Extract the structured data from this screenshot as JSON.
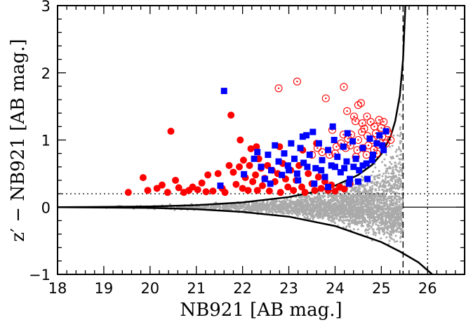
{
  "chart_data": {
    "type": "scatter",
    "xlabel": "NB921 [AB mag.]",
    "ylabel": "z′ − NB921 [AB mag.]",
    "xlim": [
      18,
      26.8
    ],
    "ylim": [
      -1,
      3
    ],
    "x_ticks": [
      18,
      19,
      20,
      21,
      22,
      23,
      24,
      25,
      26
    ],
    "y_ticks": [
      -1,
      0,
      1,
      2,
      3
    ],
    "grid": false,
    "colors": {
      "filled_circle": "#ff0000",
      "open_circle": "#ff0000",
      "square": "#0000ff",
      "background_points": "#aaaaaa",
      "curves": "#000000"
    },
    "reference_lines": {
      "color_cut_y": 0.2,
      "zero_y": 0,
      "limit_x_dashed": 25.47,
      "limit_x_dotted": 26.0
    },
    "curves": {
      "upper": [
        [
          18,
          0
        ],
        [
          20,
          0.01
        ],
        [
          21,
          0.03
        ],
        [
          22,
          0.07
        ],
        [
          23,
          0.15
        ],
        [
          23.5,
          0.22
        ],
        [
          24,
          0.32
        ],
        [
          24.5,
          0.48
        ],
        [
          24.8,
          0.63
        ],
        [
          25,
          0.79
        ],
        [
          25.2,
          1.05
        ],
        [
          25.3,
          1.28
        ],
        [
          25.4,
          1.66
        ],
        [
          25.47,
          2.2
        ],
        [
          25.52,
          3.0
        ]
      ],
      "lower": [
        [
          18,
          0
        ],
        [
          20,
          -0.01
        ],
        [
          21,
          -0.03
        ],
        [
          22,
          -0.07
        ],
        [
          23,
          -0.14
        ],
        [
          24,
          -0.28
        ],
        [
          24.5,
          -0.4
        ],
        [
          25,
          -0.52
        ],
        [
          25.4,
          -0.66
        ],
        [
          25.8,
          -0.82
        ],
        [
          26.1,
          -1.0
        ]
      ]
    },
    "series": [
      {
        "marker": "filled-circle",
        "color": "#ff0000",
        "points": [
          [
            19.53,
            0.22
          ],
          [
            19.85,
            0.44
          ],
          [
            19.95,
            0.25
          ],
          [
            20.15,
            0.28
          ],
          [
            20.26,
            0.33
          ],
          [
            20.38,
            0.22
          ],
          [
            20.45,
            1.13
          ],
          [
            20.55,
            0.4
          ],
          [
            20.62,
            0.29
          ],
          [
            20.73,
            0.22
          ],
          [
            20.84,
            0.25
          ],
          [
            20.92,
            0.3
          ],
          [
            21.03,
            0.26
          ],
          [
            21.12,
            0.36
          ],
          [
            21.21,
            0.23
          ],
          [
            21.25,
            0.48
          ],
          [
            21.36,
            0.24
          ],
          [
            21.47,
            0.5
          ],
          [
            21.56,
            0.28
          ],
          [
            21.62,
            0.22
          ],
          [
            21.71,
            0.62
          ],
          [
            21.75,
            1.37
          ],
          [
            21.8,
            0.52
          ],
          [
            21.86,
            0.34
          ],
          [
            21.93,
            0.6
          ],
          [
            21.95,
            1.0
          ],
          [
            22.0,
            0.28
          ],
          [
            22.02,
            0.7
          ],
          [
            22.06,
            0.44
          ],
          [
            22.12,
            0.25
          ],
          [
            22.15,
            0.62
          ],
          [
            22.18,
            0.87
          ],
          [
            22.22,
            0.38
          ],
          [
            22.28,
            0.48
          ],
          [
            22.32,
            0.25
          ],
          [
            22.35,
            0.72
          ],
          [
            22.4,
            0.58
          ],
          [
            22.43,
            0.32
          ],
          [
            22.48,
            0.43
          ],
          [
            22.54,
            0.62
          ],
          [
            22.58,
            0.24
          ],
          [
            22.64,
            0.55
          ],
          [
            22.7,
            0.38
          ],
          [
            22.76,
            0.5
          ],
          [
            22.82,
            0.22
          ],
          [
            22.87,
            0.65
          ],
          [
            22.93,
            0.42
          ],
          [
            22.98,
            0.3
          ],
          [
            23.04,
            0.55
          ],
          [
            23.1,
            0.25
          ],
          [
            23.16,
            0.4
          ],
          [
            23.22,
            0.62
          ],
          [
            23.28,
            0.3
          ],
          [
            23.35,
            0.22
          ],
          [
            23.42,
            0.5
          ],
          [
            23.5,
            0.35
          ],
          [
            23.56,
            0.25
          ],
          [
            23.64,
            0.45
          ],
          [
            23.7,
            0.28
          ],
          [
            23.78,
            0.38
          ],
          [
            23.85,
            0.25
          ],
          [
            23.92,
            0.33
          ],
          [
            24.0,
            0.24
          ],
          [
            24.1,
            0.3
          ],
          [
            24.2,
            0.27
          ],
          [
            24.32,
            0.35
          ],
          [
            22.3,
            0.9
          ],
          [
            22.8,
            0.9
          ],
          [
            23.3,
            0.85
          ],
          [
            23.6,
            0.95
          ]
        ]
      },
      {
        "marker": "open-circle",
        "color": "#ff0000",
        "points": [
          [
            22.78,
            1.77
          ],
          [
            23.18,
            1.87
          ],
          [
            24.19,
            1.79
          ],
          [
            23.8,
            1.62
          ],
          [
            24.26,
            1.43
          ],
          [
            24.5,
            1.52
          ],
          [
            24.56,
            1.55
          ],
          [
            24.41,
            1.35
          ],
          [
            24.69,
            1.35
          ],
          [
            23.94,
            1.15
          ],
          [
            24.44,
            1.28
          ],
          [
            24.59,
            1.25
          ],
          [
            24.63,
            1.17
          ],
          [
            24.77,
            1.27
          ],
          [
            24.85,
            1.2
          ],
          [
            24.95,
            1.3
          ],
          [
            25.0,
            1.18
          ],
          [
            25.05,
            1.27
          ],
          [
            25.12,
            1.15
          ],
          [
            24.18,
            1.08
          ],
          [
            24.28,
            1.02
          ],
          [
            24.35,
            1.08
          ],
          [
            24.5,
            1.0
          ],
          [
            24.58,
            1.12
          ],
          [
            24.7,
            1.06
          ],
          [
            24.8,
            1.0
          ],
          [
            24.88,
            1.1
          ],
          [
            24.96,
            0.98
          ],
          [
            25.02,
            1.05
          ],
          [
            24.03,
            0.9
          ],
          [
            24.13,
            0.95
          ],
          [
            24.23,
            0.88
          ],
          [
            24.33,
            0.92
          ],
          [
            24.48,
            0.85
          ],
          [
            24.6,
            0.88
          ],
          [
            24.72,
            0.92
          ],
          [
            24.84,
            0.86
          ],
          [
            24.92,
            0.93
          ],
          [
            23.72,
            0.82
          ],
          [
            23.88,
            0.78
          ],
          [
            24.0,
            0.8
          ],
          [
            24.45,
            0.75
          ],
          [
            24.68,
            0.78
          ],
          [
            24.9,
            0.8
          ],
          [
            23.5,
            0.78
          ],
          [
            23.62,
            0.88
          ],
          [
            25.1,
            0.95
          ],
          [
            25.15,
            1.1
          ],
          [
            25.2,
            1.0
          ]
        ]
      },
      {
        "marker": "filled-square",
        "color": "#0000ff",
        "points": [
          [
            21.6,
            1.73
          ],
          [
            21.52,
            0.32
          ],
          [
            22.03,
            0.49
          ],
          [
            22.25,
            0.72
          ],
          [
            22.32,
            0.82
          ],
          [
            22.4,
            0.6
          ],
          [
            22.48,
            0.42
          ],
          [
            22.55,
            0.78
          ],
          [
            22.62,
            0.55
          ],
          [
            22.7,
            0.92
          ],
          [
            22.78,
            0.68
          ],
          [
            22.85,
            0.48
          ],
          [
            22.9,
            0.8
          ],
          [
            22.98,
            0.62
          ],
          [
            23.05,
            0.95
          ],
          [
            23.12,
            0.72
          ],
          [
            23.18,
            0.5
          ],
          [
            23.25,
            0.88
          ],
          [
            23.32,
            0.66
          ],
          [
            23.38,
            1.07
          ],
          [
            23.45,
            0.78
          ],
          [
            23.52,
            1.12
          ],
          [
            23.58,
            0.58
          ],
          [
            23.65,
            0.95
          ],
          [
            23.72,
            0.7
          ],
          [
            23.78,
            0.45
          ],
          [
            23.85,
            0.85
          ],
          [
            23.92,
            0.62
          ],
          [
            23.98,
            1.0
          ],
          [
            24.05,
            0.75
          ],
          [
            24.12,
            0.52
          ],
          [
            24.18,
            0.9
          ],
          [
            24.25,
            0.68
          ],
          [
            24.32,
            0.42
          ],
          [
            24.38,
            0.98
          ],
          [
            24.45,
            0.72
          ],
          [
            24.52,
            0.55
          ],
          [
            24.6,
            0.88
          ],
          [
            24.68,
            0.65
          ],
          [
            24.75,
            1.02
          ],
          [
            24.82,
            0.78
          ],
          [
            24.9,
            0.95
          ],
          [
            24.96,
            1.07
          ],
          [
            25.02,
            0.92
          ],
          [
            25.1,
            1.13
          ],
          [
            24.3,
            0.35
          ],
          [
            24.5,
            0.38
          ],
          [
            24.7,
            0.42
          ],
          [
            23.55,
            0.35
          ],
          [
            23.85,
            0.3
          ],
          [
            23.2,
            0.4
          ],
          [
            22.6,
            0.35
          ],
          [
            23.0,
            0.55
          ],
          [
            23.4,
            0.6
          ],
          [
            23.7,
            0.55
          ],
          [
            24.0,
            0.6
          ],
          [
            24.2,
            0.58
          ],
          [
            24.4,
            0.6
          ],
          [
            24.6,
            0.62
          ],
          [
            24.8,
            0.7
          ],
          [
            23.3,
            1.05
          ],
          [
            24.27,
            1.1
          ],
          [
            23.95,
            1.2
          ],
          [
            25.05,
            0.85
          ]
        ]
      },
      {
        "marker": "background-dots",
        "color": "#aaaaaa",
        "description_band": "dense field between curves from NB921 ≈ 18.5 to 25.47"
      }
    ]
  }
}
